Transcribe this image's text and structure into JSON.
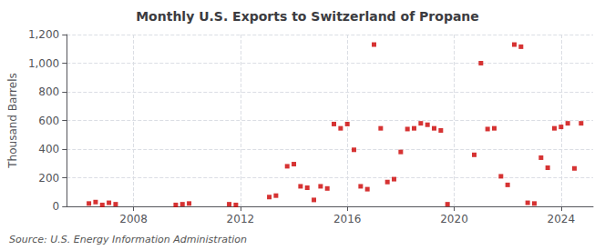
{
  "chart_data": {
    "type": "scatter",
    "title": "Monthly U.S. Exports to Switzerland of Propane",
    "ylabel": "Thousand Barrels",
    "annotation": "Source: U.S. Energy Information Administration",
    "x": [
      2006.33,
      2006.58,
      2006.83,
      2007.08,
      2007.33,
      2009.58,
      2009.83,
      2010.08,
      2011.58,
      2011.83,
      2013.08,
      2013.33,
      2013.75,
      2014.0,
      2014.25,
      2014.5,
      2014.75,
      2015.0,
      2015.25,
      2015.5,
      2015.75,
      2016.0,
      2016.25,
      2016.5,
      2016.75,
      2017.0,
      2017.25,
      2017.5,
      2017.75,
      2018.0,
      2018.25,
      2018.5,
      2018.75,
      2019.0,
      2019.25,
      2019.5,
      2019.75,
      2020.75,
      2021.0,
      2021.25,
      2021.5,
      2021.75,
      2022.0,
      2022.25,
      2022.5,
      2022.75,
      2023.0,
      2023.25,
      2023.5,
      2023.75,
      2024.0,
      2024.25,
      2024.5,
      2024.75
    ],
    "values": [
      20,
      30,
      10,
      25,
      15,
      10,
      15,
      20,
      15,
      10,
      65,
      75,
      280,
      295,
      140,
      130,
      45,
      140,
      125,
      575,
      545,
      575,
      395,
      140,
      120,
      1130,
      545,
      170,
      190,
      380,
      540,
      545,
      580,
      570,
      545,
      530,
      15,
      360,
      1000,
      540,
      545,
      210,
      150,
      1130,
      1115,
      25,
      20,
      340,
      270,
      545,
      555,
      580,
      265,
      580
    ],
    "color": "#cc0000",
    "marker": "square",
    "xlim": [
      2005.5,
      2025.2
    ],
    "xticks": [
      2008,
      2012,
      2016,
      2020,
      2024
    ],
    "ylim": [
      0,
      1200
    ],
    "yticks": [
      0,
      200,
      400,
      600,
      800,
      {
        "value": 1000,
        "label": "1,000"
      },
      {
        "value": 1200,
        "label": "1,200"
      }
    ],
    "grid": true
  }
}
